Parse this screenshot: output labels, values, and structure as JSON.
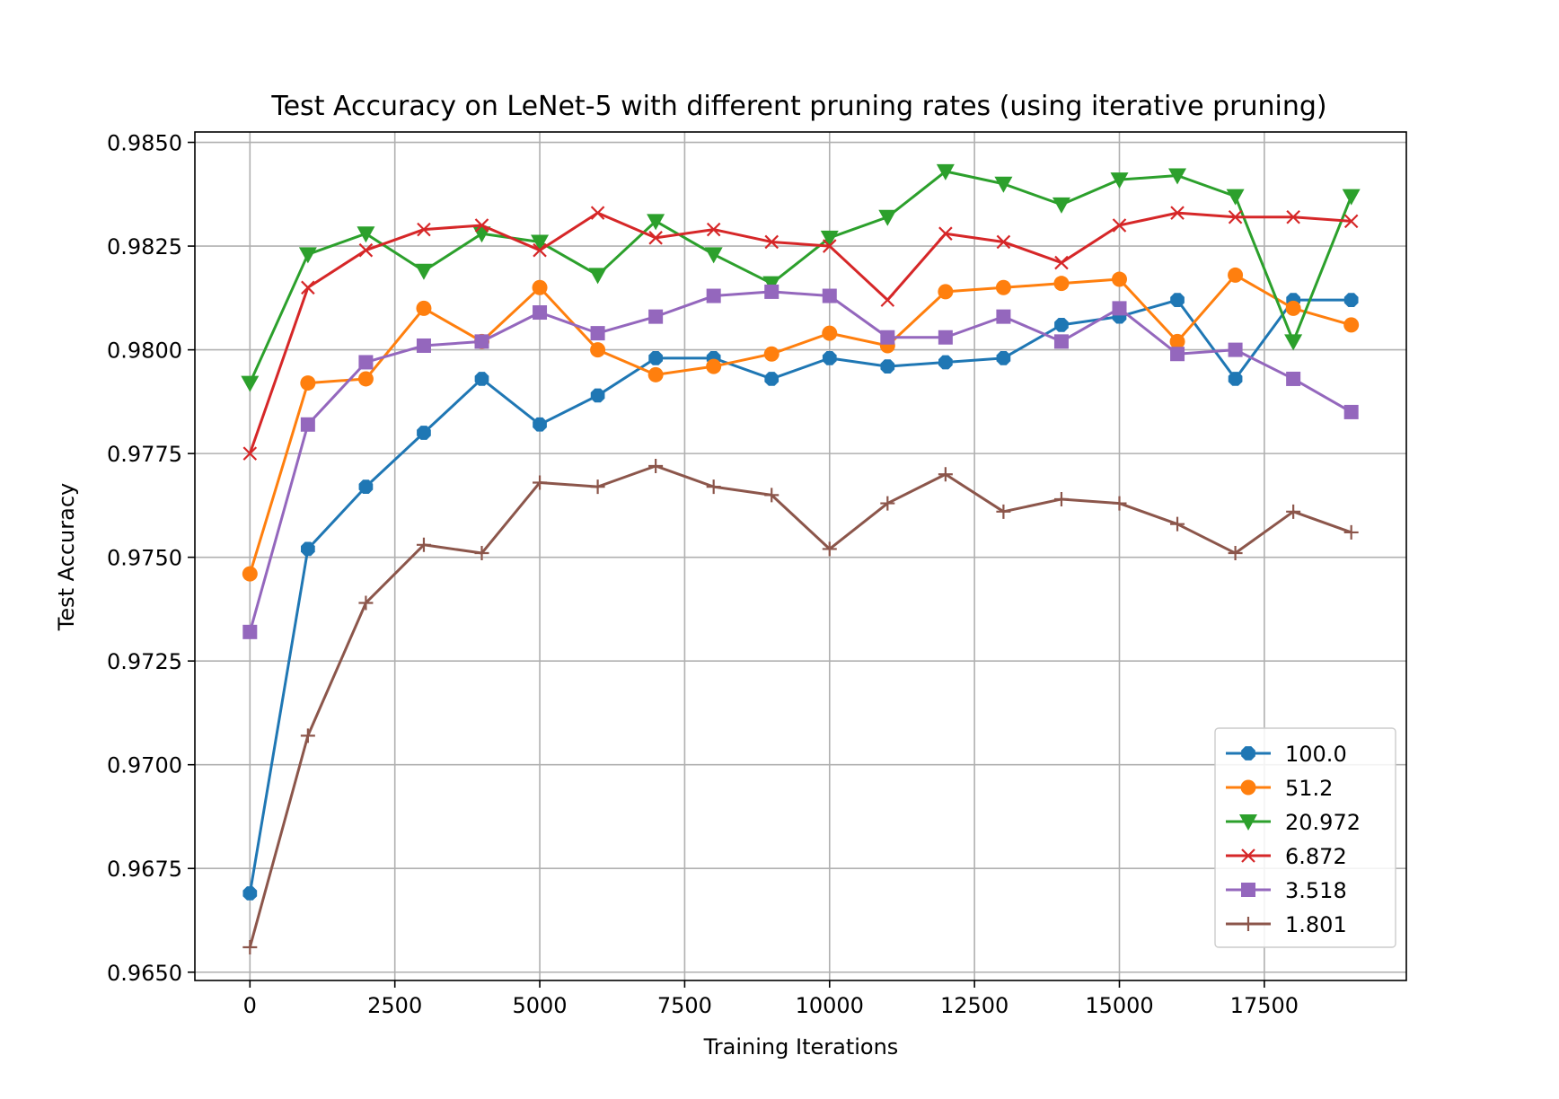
{
  "chart_data": {
    "type": "line",
    "title": "Test Accuracy on LeNet-5 with different pruning rates (using iterative pruning)",
    "xlabel": "Training Iterations",
    "ylabel": "Test Accuracy",
    "xlim": [
      -950,
      19950
    ],
    "ylim": [
      0.9648,
      0.98525
    ],
    "xticks": [
      0,
      2500,
      5000,
      7500,
      10000,
      12500,
      15000,
      17500
    ],
    "xtick_labels": [
      "0",
      "2500",
      "5000",
      "7500",
      "10000",
      "12500",
      "15000",
      "17500"
    ],
    "yticks": [
      0.965,
      0.9675,
      0.97,
      0.9725,
      0.975,
      0.9775,
      0.98,
      0.9825,
      0.985
    ],
    "ytick_labels": [
      "0.9650",
      "0.9675",
      "0.9700",
      "0.9725",
      "0.9750",
      "0.9775",
      "0.9800",
      "0.9825",
      "0.9850"
    ],
    "grid": true,
    "legend_position": "lower-right",
    "x": [
      0,
      1000,
      2000,
      3000,
      4000,
      5000,
      6000,
      7000,
      8000,
      9000,
      10000,
      11000,
      12000,
      13000,
      14000,
      15000,
      16000,
      17000,
      18000,
      19000
    ],
    "series": [
      {
        "name": "100.0",
        "color": "#1f77b4",
        "marker": "octagon",
        "values": [
          0.9669,
          0.9752,
          0.9767,
          0.978,
          0.9793,
          0.9782,
          0.9789,
          0.9798,
          0.9798,
          0.9793,
          0.9798,
          0.9796,
          0.9797,
          0.9798,
          0.9806,
          0.9808,
          0.9812,
          0.9793,
          0.9812,
          0.9812
        ]
      },
      {
        "name": "51.2",
        "color": "#ff7f0e",
        "marker": "circle",
        "values": [
          0.9746,
          0.9792,
          0.9793,
          0.981,
          0.9802,
          0.9815,
          0.98,
          0.9794,
          0.9796,
          0.9799,
          0.9804,
          0.9801,
          0.9814,
          0.9815,
          0.9816,
          0.9817,
          0.9802,
          0.9818,
          0.981,
          0.9806
        ]
      },
      {
        "name": "20.972",
        "color": "#2ca02c",
        "marker": "triangle-down",
        "values": [
          0.9792,
          0.9823,
          0.9828,
          0.9819,
          0.9828,
          0.9826,
          0.9818,
          0.9831,
          0.9823,
          0.9816,
          0.9827,
          0.9832,
          0.9843,
          0.984,
          0.9835,
          0.9841,
          0.9842,
          0.9837,
          0.9802,
          0.9837
        ]
      },
      {
        "name": "6.872",
        "color": "#d62728",
        "marker": "x",
        "values": [
          0.9775,
          0.9815,
          0.9824,
          0.9829,
          0.983,
          0.9824,
          0.9833,
          0.9827,
          0.9829,
          0.9826,
          0.9825,
          0.9812,
          0.9828,
          0.9826,
          0.9821,
          0.983,
          0.9833,
          0.9832,
          0.9832,
          0.9831
        ]
      },
      {
        "name": "3.518",
        "color": "#9467bd",
        "marker": "square",
        "values": [
          0.9732,
          0.9782,
          0.9797,
          0.9801,
          0.9802,
          0.9809,
          0.9804,
          0.9808,
          0.9813,
          0.9814,
          0.9813,
          0.9803,
          0.9803,
          0.9808,
          0.9802,
          0.981,
          0.9799,
          0.98,
          0.9793,
          0.9785
        ]
      },
      {
        "name": "1.801",
        "color": "#8c564b",
        "marker": "plus",
        "values": [
          0.9656,
          0.9707,
          0.9739,
          0.9753,
          0.9751,
          0.9768,
          0.9767,
          0.9772,
          0.9767,
          0.9765,
          0.9752,
          0.9763,
          0.977,
          0.9761,
          0.9764,
          0.9763,
          0.9758,
          0.9751,
          0.9761,
          0.9756
        ]
      }
    ]
  }
}
